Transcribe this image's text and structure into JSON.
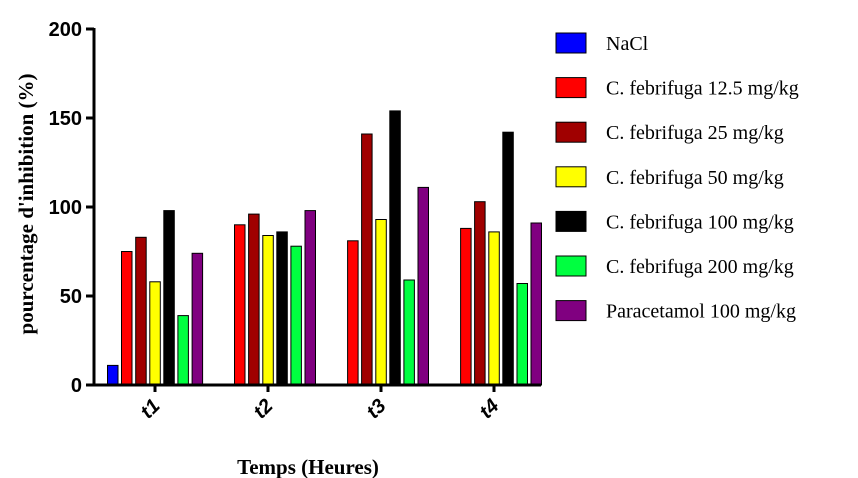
{
  "chart_data": {
    "type": "bar",
    "categories": [
      "t1",
      "t2",
      "t3",
      "t4"
    ],
    "xlabel": "Temps (Heures)",
    "ylabel": "pourcentage d'inhibition (%)",
    "ylim": [
      0,
      200
    ],
    "yticks": [
      "0",
      "50",
      "100",
      "150",
      "200"
    ],
    "legend_position": "right",
    "series": [
      {
        "name": "NaCl",
        "color": "#0000ff",
        "values": [
          11,
          0,
          0,
          0
        ]
      },
      {
        "name": "C. febrifuga 12.5 mg/kg",
        "color": "#ff0000",
        "values": [
          75,
          90,
          81,
          88
        ]
      },
      {
        "name": "C. febrifuga 25 mg/kg",
        "color": "#a00000",
        "values": [
          83,
          96,
          141,
          103
        ]
      },
      {
        "name": "C. febrifuga 50 mg/kg",
        "color": "#ffff00",
        "values": [
          58,
          84,
          93,
          86
        ]
      },
      {
        "name": "C. febrifuga 100 mg/kg",
        "color": "#000000",
        "values": [
          98,
          86,
          154,
          142
        ]
      },
      {
        "name": "C. febrifuga 200 mg/kg",
        "color": "#00ff40",
        "values": [
          39,
          78,
          59,
          57
        ]
      },
      {
        "name": "Paracetamol 100 mg/kg",
        "color": "#800080",
        "values": [
          74,
          98,
          111,
          91
        ]
      }
    ]
  }
}
